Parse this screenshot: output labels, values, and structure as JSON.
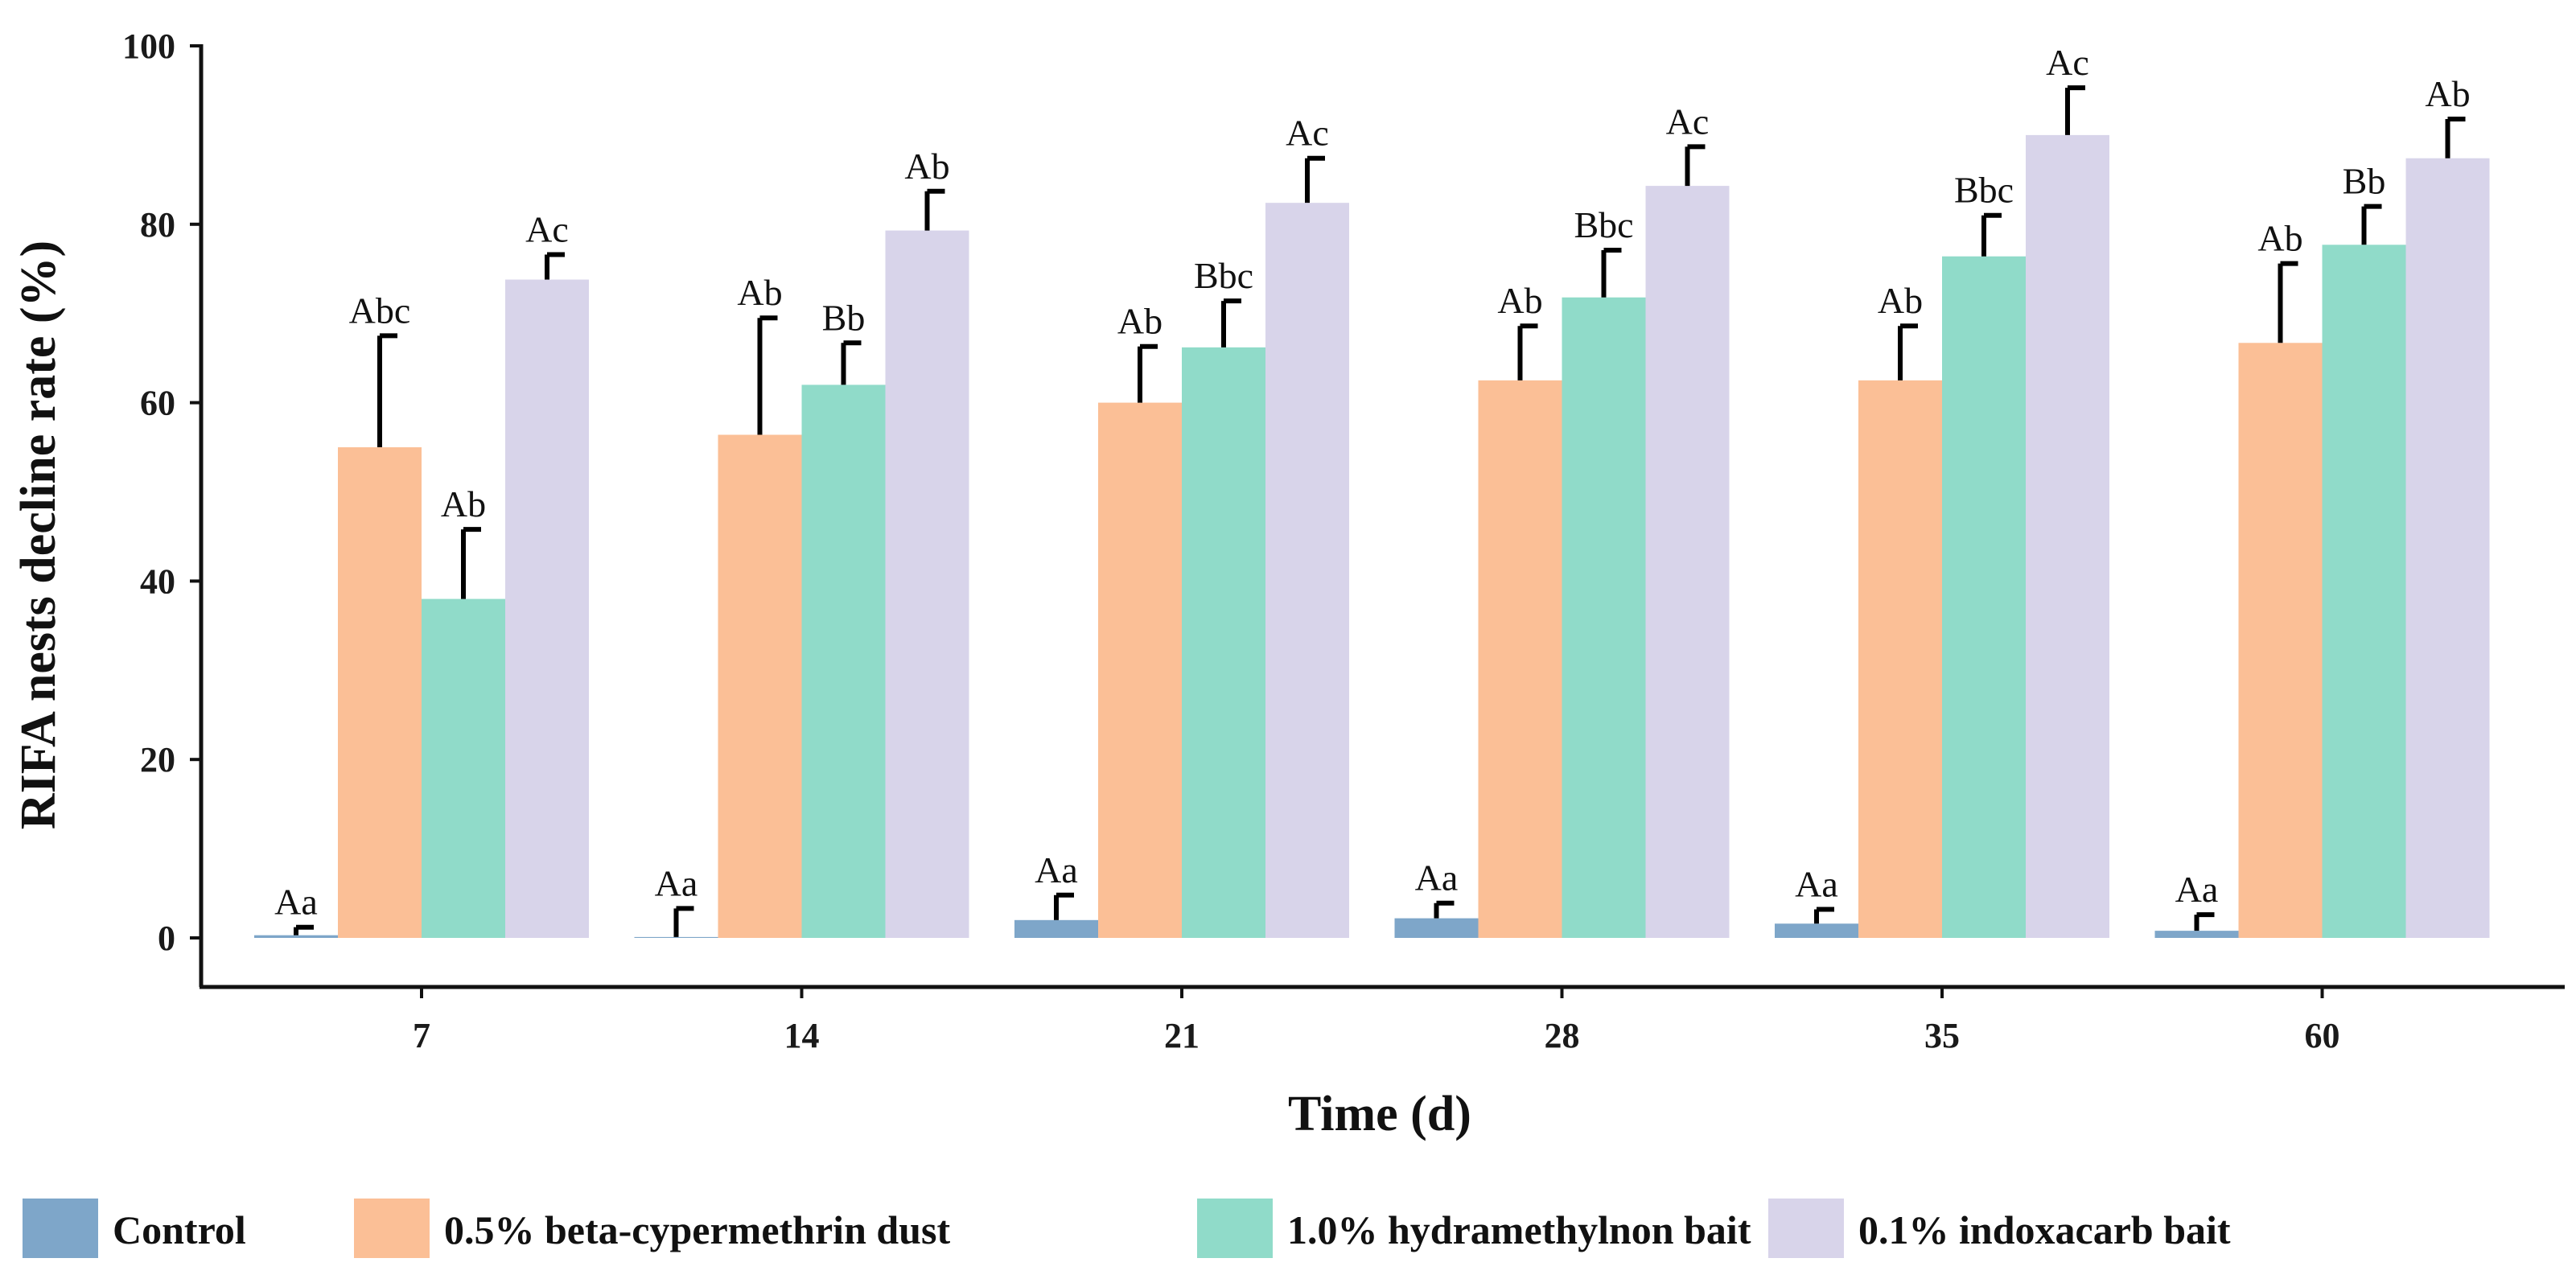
{
  "chart_data": {
    "type": "bar",
    "title": "",
    "xlabel": "Time (d)",
    "ylabel": "RIFA nests decline rate (%)",
    "ylim": [
      0,
      100
    ],
    "yticks": [
      0,
      20,
      40,
      60,
      80,
      100
    ],
    "grid": false,
    "legend_position": "bottom",
    "categories": [
      "7",
      "14",
      "21",
      "28",
      "35",
      "60"
    ],
    "series": [
      {
        "name": "Control",
        "color": "#7ea6c9",
        "values": [
          0.3,
          0.1,
          2.0,
          2.2,
          1.6,
          0.8
        ],
        "errors": [
          0.9,
          3.2,
          2.8,
          1.7,
          1.6,
          1.8
        ],
        "labels": [
          "Aa",
          "Aa",
          "Aa",
          "Aa",
          "Aa",
          "Aa"
        ]
      },
      {
        "name": "0.5% beta-cypermethrin dust",
        "color": "#fbbf96",
        "values": [
          55.0,
          56.4,
          60.0,
          62.5,
          62.5,
          66.7
        ],
        "errors": [
          12.5,
          13.1,
          6.3,
          6.1,
          6.1,
          8.9
        ],
        "labels": [
          "Abc",
          "Ab",
          "Ab",
          "Ab",
          "Ab",
          "Ab"
        ]
      },
      {
        "name": "1.0% hydramethylnon bait",
        "color": "#90dbc9",
        "values": [
          38.0,
          62.0,
          66.2,
          71.8,
          76.4,
          77.7
        ],
        "errors": [
          7.8,
          4.7,
          5.2,
          5.3,
          4.6,
          4.3
        ],
        "labels": [
          "Ab",
          "Bb",
          "Bbc",
          "Bbc",
          "Bbc",
          "Bb"
        ]
      },
      {
        "name": "0.1% indoxacarb bait",
        "color": "#d8d4ea",
        "values": [
          73.8,
          79.3,
          82.4,
          84.3,
          90.0,
          87.4
        ],
        "errors": [
          2.8,
          4.4,
          5.0,
          4.4,
          5.3,
          4.4
        ],
        "labels": [
          "Ac",
          "Ab",
          "Ac",
          "Ac",
          "Ac",
          "Ab"
        ]
      }
    ]
  }
}
